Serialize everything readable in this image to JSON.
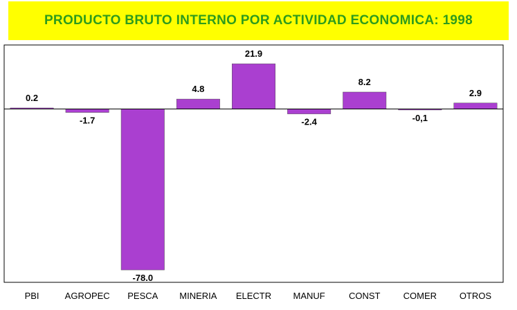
{
  "title": "PRODUCTO BRUTO INTERNO POR ACTIVIDAD ECONOMICA: 1998",
  "colors": {
    "title_background": "#ffff00",
    "title_text": "#2e9c1c",
    "bar": "#aa3fd0"
  },
  "chart_data": {
    "type": "bar",
    "title": "PRODUCTO BRUTO INTERNO POR ACTIVIDAD ECONOMICA: 1998",
    "categories": [
      "PBI",
      "AGROPEC",
      "PESCA",
      "MINERIA",
      "ELECTR",
      "MANUF",
      "CONST",
      "COMER",
      "OTROS"
    ],
    "values": [
      0.2,
      -1.7,
      -78.0,
      4.8,
      21.9,
      -2.4,
      8.2,
      -0.1,
      2.9
    ],
    "value_labels": [
      "0.2",
      "-1.7",
      "-78.0",
      "4.8",
      "21.9",
      "-2.4",
      "8.2",
      "-0,1",
      "2.9"
    ],
    "xlabel": "",
    "ylabel": "",
    "ylim": [
      -84,
      31
    ],
    "grid": false,
    "legend": "none"
  }
}
